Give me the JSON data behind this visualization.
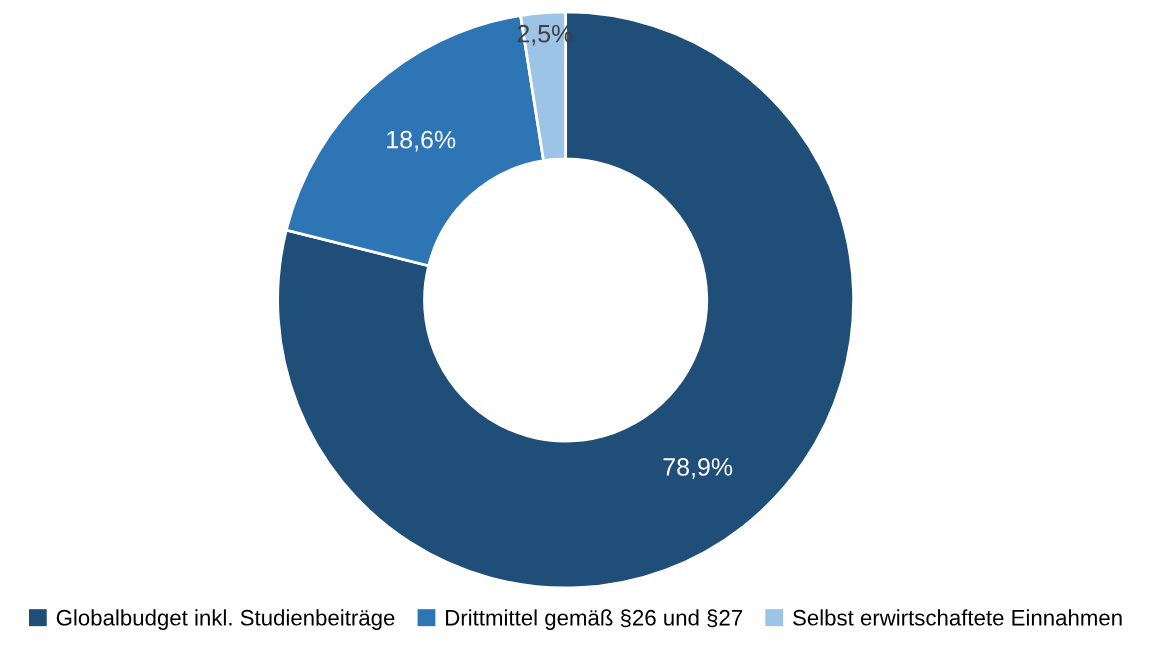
{
  "chart_data": {
    "type": "donut",
    "categories": [
      "Globalbudget inkl. Studienbeiträge",
      "Drittmittel gemäß §26 und §27",
      "Selbst erwirtschaftete Einnahmen"
    ],
    "values": [
      78.9,
      18.6,
      2.5
    ],
    "colors": [
      "#1f4e79",
      "#2e75b6",
      "#9dc3e6"
    ],
    "value_labels": [
      "78,9%",
      "18,6%",
      "2,5%"
    ],
    "legend": "bottom"
  }
}
